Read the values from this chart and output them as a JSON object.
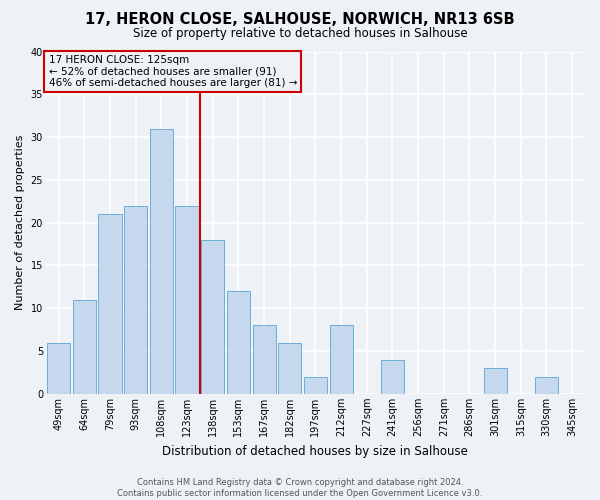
{
  "title": "17, HERON CLOSE, SALHOUSE, NORWICH, NR13 6SB",
  "subtitle": "Size of property relative to detached houses in Salhouse",
  "xlabel": "Distribution of detached houses by size in Salhouse",
  "ylabel": "Number of detached properties",
  "bar_labels": [
    "49sqm",
    "64sqm",
    "79sqm",
    "93sqm",
    "108sqm",
    "123sqm",
    "138sqm",
    "153sqm",
    "167sqm",
    "182sqm",
    "197sqm",
    "212sqm",
    "227sqm",
    "241sqm",
    "256sqm",
    "271sqm",
    "286sqm",
    "301sqm",
    "315sqm",
    "330sqm",
    "345sqm"
  ],
  "bar_values": [
    6,
    11,
    21,
    22,
    31,
    22,
    18,
    12,
    8,
    6,
    2,
    8,
    0,
    4,
    0,
    0,
    0,
    3,
    0,
    2,
    0
  ],
  "bar_color": "#c5d8ed",
  "bar_edge_color": "#6aaed6",
  "vline_color": "#cc0000",
  "annotation_text": "17 HERON CLOSE: 125sqm\n← 52% of detached houses are smaller (91)\n46% of semi-detached houses are larger (81) →",
  "annotation_box_edge": "#cc0000",
  "ylim": [
    0,
    40
  ],
  "yticks": [
    0,
    5,
    10,
    15,
    20,
    25,
    30,
    35,
    40
  ],
  "footer_line1": "Contains HM Land Registry data © Crown copyright and database right 2024.",
  "footer_line2": "Contains public sector information licensed under the Open Government Licence v3.0.",
  "background_color": "#eef2f7",
  "grid_color": "#ffffff",
  "title_fontsize": 10.5,
  "subtitle_fontsize": 8.5,
  "ylabel_fontsize": 8,
  "xlabel_fontsize": 8.5,
  "tick_fontsize": 7,
  "annotation_fontsize": 7.5,
  "footer_fontsize": 6
}
